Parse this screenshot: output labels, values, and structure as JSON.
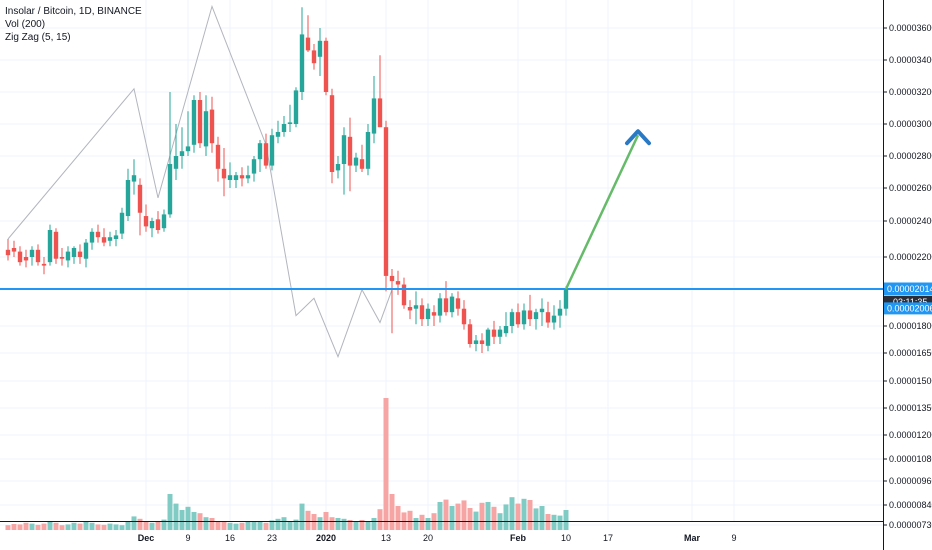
{
  "legend": {
    "symbol": "Insolar / Bitcoin, 1D, BINANCE",
    "volume": "Vol (200)",
    "zigzag": "Zig Zag (5, 15)"
  },
  "price_axis": {
    "ticks": [
      "0.00003600",
      "0.00003400",
      "0.00003200",
      "0.00003000",
      "0.00002800",
      "0.00002600",
      "0.00002400",
      "0.00002200",
      "0.00001800",
      "0.00001650",
      "0.00001500",
      "0.00001350",
      "0.00001200",
      "0.00001080",
      "0.00000960",
      "0.00000840",
      "0.00000730"
    ],
    "tick_values": [
      3600,
      3400,
      3200,
      3000,
      2800,
      2600,
      2400,
      2200,
      1800,
      1650,
      1500,
      1350,
      1200,
      1080,
      960,
      840,
      730
    ],
    "level_label": "0.00002014",
    "countdown": "03:11:35",
    "last_price_label": "0.00002006"
  },
  "time_axis": {
    "labels": [
      "Dec",
      "9",
      "16",
      "23",
      "2020",
      "13",
      "20",
      "Feb",
      "10",
      "17",
      "Mar",
      "9"
    ],
    "label_days": [
      23,
      30,
      37,
      44,
      53,
      63,
      70,
      85,
      93,
      100,
      114,
      121
    ],
    "bold": [
      "Dec",
      "2020",
      "Feb",
      "Mar"
    ]
  },
  "colors": {
    "up": "#26a69a",
    "down": "#ef5350",
    "vol_up": "#80cbc4",
    "vol_down": "#f6a5a4",
    "level_line": "#2196f3",
    "zigzag": "#b2b5be",
    "projection": "#66bb6a",
    "arrow_head": "#2979c5",
    "tag_dark": "#2a2e39",
    "tag_blue": "#2196f3"
  },
  "chart_data": {
    "type": "candlestick",
    "title": "Insolar / Bitcoin, 1D, BINANCE",
    "unit": "BTC x 1e-8",
    "candles": [
      {
        "t": 0,
        "o": 2240,
        "h": 2300,
        "l": 2180,
        "c": 2210
      },
      {
        "t": 1,
        "o": 2250,
        "h": 2290,
        "l": 2200,
        "c": 2230
      },
      {
        "t": 2,
        "o": 2230,
        "h": 2260,
        "l": 2150,
        "c": 2170
      },
      {
        "t": 3,
        "o": 2200,
        "h": 2240,
        "l": 2140,
        "c": 2180
      },
      {
        "t": 4,
        "o": 2200,
        "h": 2260,
        "l": 2150,
        "c": 2240
      },
      {
        "t": 5,
        "o": 2240,
        "h": 2270,
        "l": 2150,
        "c": 2170
      },
      {
        "t": 6,
        "o": 2160,
        "h": 2200,
        "l": 2100,
        "c": 2150
      },
      {
        "t": 7,
        "o": 2170,
        "h": 2380,
        "l": 2150,
        "c": 2350
      },
      {
        "t": 8,
        "o": 2340,
        "h": 2360,
        "l": 2160,
        "c": 2190
      },
      {
        "t": 9,
        "o": 2200,
        "h": 2250,
        "l": 2150,
        "c": 2190
      },
      {
        "t": 10,
        "o": 2180,
        "h": 2260,
        "l": 2140,
        "c": 2230
      },
      {
        "t": 11,
        "o": 2200,
        "h": 2260,
        "l": 2160,
        "c": 2250
      },
      {
        "t": 12,
        "o": 2230,
        "h": 2270,
        "l": 2160,
        "c": 2200
      },
      {
        "t": 13,
        "o": 2190,
        "h": 2300,
        "l": 2140,
        "c": 2280
      },
      {
        "t": 14,
        "o": 2280,
        "h": 2360,
        "l": 2240,
        "c": 2340
      },
      {
        "t": 15,
        "o": 2340,
        "h": 2380,
        "l": 2280,
        "c": 2310
      },
      {
        "t": 16,
        "o": 2310,
        "h": 2360,
        "l": 2260,
        "c": 2280
      },
      {
        "t": 17,
        "o": 2290,
        "h": 2340,
        "l": 2260,
        "c": 2310
      },
      {
        "t": 18,
        "o": 2300,
        "h": 2350,
        "l": 2260,
        "c": 2320
      },
      {
        "t": 19,
        "o": 2330,
        "h": 2480,
        "l": 2300,
        "c": 2450
      },
      {
        "t": 20,
        "o": 2430,
        "h": 2720,
        "l": 2400,
        "c": 2650
      },
      {
        "t": 21,
        "o": 2640,
        "h": 2780,
        "l": 2560,
        "c": 2680
      },
      {
        "t": 22,
        "o": 2620,
        "h": 2660,
        "l": 2320,
        "c": 2450
      },
      {
        "t": 23,
        "o": 2430,
        "h": 2500,
        "l": 2340,
        "c": 2370
      },
      {
        "t": 24,
        "o": 2360,
        "h": 2420,
        "l": 2310,
        "c": 2400
      },
      {
        "t": 25,
        "o": 2410,
        "h": 2460,
        "l": 2330,
        "c": 2350
      },
      {
        "t": 26,
        "o": 2360,
        "h": 2470,
        "l": 2340,
        "c": 2440
      },
      {
        "t": 27,
        "o": 2440,
        "h": 3200,
        "l": 2420,
        "c": 2750
      },
      {
        "t": 28,
        "o": 2720,
        "h": 3000,
        "l": 2650,
        "c": 2800
      },
      {
        "t": 29,
        "o": 2800,
        "h": 2980,
        "l": 2720,
        "c": 2830
      },
      {
        "t": 30,
        "o": 2830,
        "h": 3080,
        "l": 2800,
        "c": 2860
      },
      {
        "t": 31,
        "o": 2870,
        "h": 3180,
        "l": 2820,
        "c": 3150
      },
      {
        "t": 32,
        "o": 3150,
        "h": 3200,
        "l": 2850,
        "c": 2880
      },
      {
        "t": 33,
        "o": 2860,
        "h": 3180,
        "l": 2800,
        "c": 3080
      },
      {
        "t": 34,
        "o": 3090,
        "h": 3170,
        "l": 2820,
        "c": 2880
      },
      {
        "t": 35,
        "o": 2870,
        "h": 2920,
        "l": 2640,
        "c": 2720
      },
      {
        "t": 36,
        "o": 2720,
        "h": 2850,
        "l": 2550,
        "c": 2660
      },
      {
        "t": 37,
        "o": 2650,
        "h": 2760,
        "l": 2600,
        "c": 2680
      },
      {
        "t": 38,
        "o": 2650,
        "h": 2700,
        "l": 2600,
        "c": 2680
      },
      {
        "t": 39,
        "o": 2680,
        "h": 2730,
        "l": 2610,
        "c": 2660
      },
      {
        "t": 40,
        "o": 2660,
        "h": 2740,
        "l": 2630,
        "c": 2680
      },
      {
        "t": 41,
        "o": 2690,
        "h": 2800,
        "l": 2640,
        "c": 2780
      },
      {
        "t": 42,
        "o": 2780,
        "h": 2900,
        "l": 2700,
        "c": 2880
      },
      {
        "t": 43,
        "o": 2880,
        "h": 2940,
        "l": 2720,
        "c": 2740
      },
      {
        "t": 44,
        "o": 2740,
        "h": 2970,
        "l": 2710,
        "c": 2930
      },
      {
        "t": 45,
        "o": 2920,
        "h": 3020,
        "l": 2880,
        "c": 2950
      },
      {
        "t": 46,
        "o": 2950,
        "h": 3050,
        "l": 2920,
        "c": 3000
      },
      {
        "t": 47,
        "o": 3000,
        "h": 3120,
        "l": 2950,
        "c": 3010
      },
      {
        "t": 48,
        "o": 3000,
        "h": 3230,
        "l": 2980,
        "c": 3210
      },
      {
        "t": 49,
        "o": 3200,
        "h": 3730,
        "l": 3150,
        "c": 3560
      },
      {
        "t": 50,
        "o": 3540,
        "h": 3680,
        "l": 3450,
        "c": 3460
      },
      {
        "t": 51,
        "o": 3460,
        "h": 3500,
        "l": 3340,
        "c": 3380
      },
      {
        "t": 52,
        "o": 3420,
        "h": 3600,
        "l": 3300,
        "c": 3520
      },
      {
        "t": 53,
        "o": 3520,
        "h": 3540,
        "l": 3180,
        "c": 3200
      },
      {
        "t": 54,
        "o": 3180,
        "h": 3220,
        "l": 2630,
        "c": 2700
      },
      {
        "t": 55,
        "o": 2710,
        "h": 2800,
        "l": 2660,
        "c": 2750
      },
      {
        "t": 56,
        "o": 2750,
        "h": 2980,
        "l": 2560,
        "c": 2930
      },
      {
        "t": 57,
        "o": 2920,
        "h": 3040,
        "l": 2580,
        "c": 2740
      },
      {
        "t": 58,
        "o": 2740,
        "h": 2820,
        "l": 2700,
        "c": 2790
      },
      {
        "t": 59,
        "o": 2780,
        "h": 2870,
        "l": 2700,
        "c": 2720
      },
      {
        "t": 60,
        "o": 2720,
        "h": 3000,
        "l": 2680,
        "c": 2950
      },
      {
        "t": 61,
        "o": 2940,
        "h": 3300,
        "l": 2880,
        "c": 3160
      },
      {
        "t": 62,
        "o": 3160,
        "h": 3430,
        "l": 3000,
        "c": 2980
      },
      {
        "t": 63,
        "o": 2980,
        "h": 3020,
        "l": 2000,
        "c": 2090
      },
      {
        "t": 64,
        "o": 2090,
        "h": 2130,
        "l": 1760,
        "c": 2060
      },
      {
        "t": 65,
        "o": 2060,
        "h": 2120,
        "l": 1980,
        "c": 2040
      },
      {
        "t": 66,
        "o": 2040,
        "h": 2080,
        "l": 1900,
        "c": 1920
      },
      {
        "t": 67,
        "o": 1910,
        "h": 1950,
        "l": 1840,
        "c": 1890
      },
      {
        "t": 68,
        "o": 1900,
        "h": 2000,
        "l": 1810,
        "c": 1920
      },
      {
        "t": 69,
        "o": 1920,
        "h": 1960,
        "l": 1800,
        "c": 1840
      },
      {
        "t": 70,
        "o": 1840,
        "h": 1930,
        "l": 1800,
        "c": 1900
      },
      {
        "t": 71,
        "o": 1880,
        "h": 1920,
        "l": 1800,
        "c": 1860
      },
      {
        "t": 72,
        "o": 1860,
        "h": 1990,
        "l": 1820,
        "c": 1960
      },
      {
        "t": 73,
        "o": 1960,
        "h": 2060,
        "l": 1860,
        "c": 1880
      },
      {
        "t": 74,
        "o": 1880,
        "h": 1990,
        "l": 1850,
        "c": 1970
      },
      {
        "t": 75,
        "o": 1960,
        "h": 2000,
        "l": 1860,
        "c": 1900
      },
      {
        "t": 76,
        "o": 1900,
        "h": 1950,
        "l": 1780,
        "c": 1810
      },
      {
        "t": 77,
        "o": 1810,
        "h": 1840,
        "l": 1680,
        "c": 1700
      },
      {
        "t": 78,
        "o": 1700,
        "h": 1750,
        "l": 1660,
        "c": 1720
      },
      {
        "t": 79,
        "o": 1720,
        "h": 1760,
        "l": 1650,
        "c": 1700
      },
      {
        "t": 80,
        "o": 1690,
        "h": 1790,
        "l": 1660,
        "c": 1780
      },
      {
        "t": 81,
        "o": 1780,
        "h": 1830,
        "l": 1700,
        "c": 1740
      },
      {
        "t": 82,
        "o": 1740,
        "h": 1800,
        "l": 1700,
        "c": 1780
      },
      {
        "t": 83,
        "o": 1760,
        "h": 1880,
        "l": 1740,
        "c": 1800
      },
      {
        "t": 84,
        "o": 1800,
        "h": 1900,
        "l": 1760,
        "c": 1880
      },
      {
        "t": 85,
        "o": 1880,
        "h": 1930,
        "l": 1790,
        "c": 1810
      },
      {
        "t": 86,
        "o": 1810,
        "h": 1930,
        "l": 1780,
        "c": 1890
      },
      {
        "t": 87,
        "o": 1890,
        "h": 1980,
        "l": 1800,
        "c": 1840
      },
      {
        "t": 88,
        "o": 1840,
        "h": 1900,
        "l": 1780,
        "c": 1880
      },
      {
        "t": 89,
        "o": 1880,
        "h": 1960,
        "l": 1800,
        "c": 1900
      },
      {
        "t": 90,
        "o": 1880,
        "h": 1940,
        "l": 1790,
        "c": 1820
      },
      {
        "t": 91,
        "o": 1820,
        "h": 1920,
        "l": 1780,
        "c": 1860
      },
      {
        "t": 92,
        "o": 1860,
        "h": 1950,
        "l": 1790,
        "c": 1900
      },
      {
        "t": 93,
        "o": 1900,
        "h": 2030,
        "l": 1860,
        "c": 2010
      }
    ],
    "volume_ratio": [
      0.12,
      0.15,
      0.14,
      0.18,
      0.16,
      0.13,
      0.16,
      0.22,
      0.18,
      0.12,
      0.14,
      0.18,
      0.16,
      0.2,
      0.18,
      0.14,
      0.13,
      0.16,
      0.14,
      0.12,
      0.2,
      0.34,
      0.28,
      0.22,
      0.18,
      0.2,
      0.26,
      0.9,
      0.66,
      0.5,
      0.58,
      0.45,
      0.42,
      0.32,
      0.3,
      0.22,
      0.2,
      0.18,
      0.16,
      0.18,
      0.2,
      0.2,
      0.22,
      0.18,
      0.24,
      0.28,
      0.32,
      0.2,
      0.26,
      0.66,
      0.48,
      0.4,
      0.32,
      0.45,
      0.32,
      0.3,
      0.28,
      0.25,
      0.2,
      0.25,
      0.22,
      0.3,
      0.52,
      3.3,
      0.9,
      0.6,
      0.44,
      0.48,
      0.3,
      0.38,
      0.3,
      0.42,
      0.7,
      0.76,
      0.6,
      0.66,
      0.74,
      0.55,
      0.46,
      0.68,
      0.7,
      0.58,
      0.42,
      0.64,
      0.82,
      0.66,
      0.78,
      0.75,
      0.54,
      0.6,
      0.4,
      0.38,
      0.36,
      0.5
    ],
    "zigzag": [
      {
        "t": 0,
        "p": 2300
      },
      {
        "t": 21,
        "p": 3220
      },
      {
        "t": 25,
        "p": 2540
      },
      {
        "t": 34,
        "p": 3735
      },
      {
        "t": 43,
        "p": 2870
      },
      {
        "t": 48,
        "p": 1860
      },
      {
        "t": 51,
        "p": 1960
      },
      {
        "t": 55,
        "p": 1630
      },
      {
        "t": 59,
        "p": 2010
      },
      {
        "t": 62,
        "p": 1820
      },
      {
        "t": 64,
        "p": 2010
      }
    ],
    "horizontal_level": 2014,
    "projection": {
      "from": {
        "t": 93,
        "p": 2014
      },
      "to": {
        "t": 105,
        "p": 2930
      }
    },
    "last_price": 2006,
    "ylim": [
      700,
      3780
    ],
    "xlim": [
      0,
      128
    ],
    "grid": true,
    "legend_position": "top-left"
  }
}
